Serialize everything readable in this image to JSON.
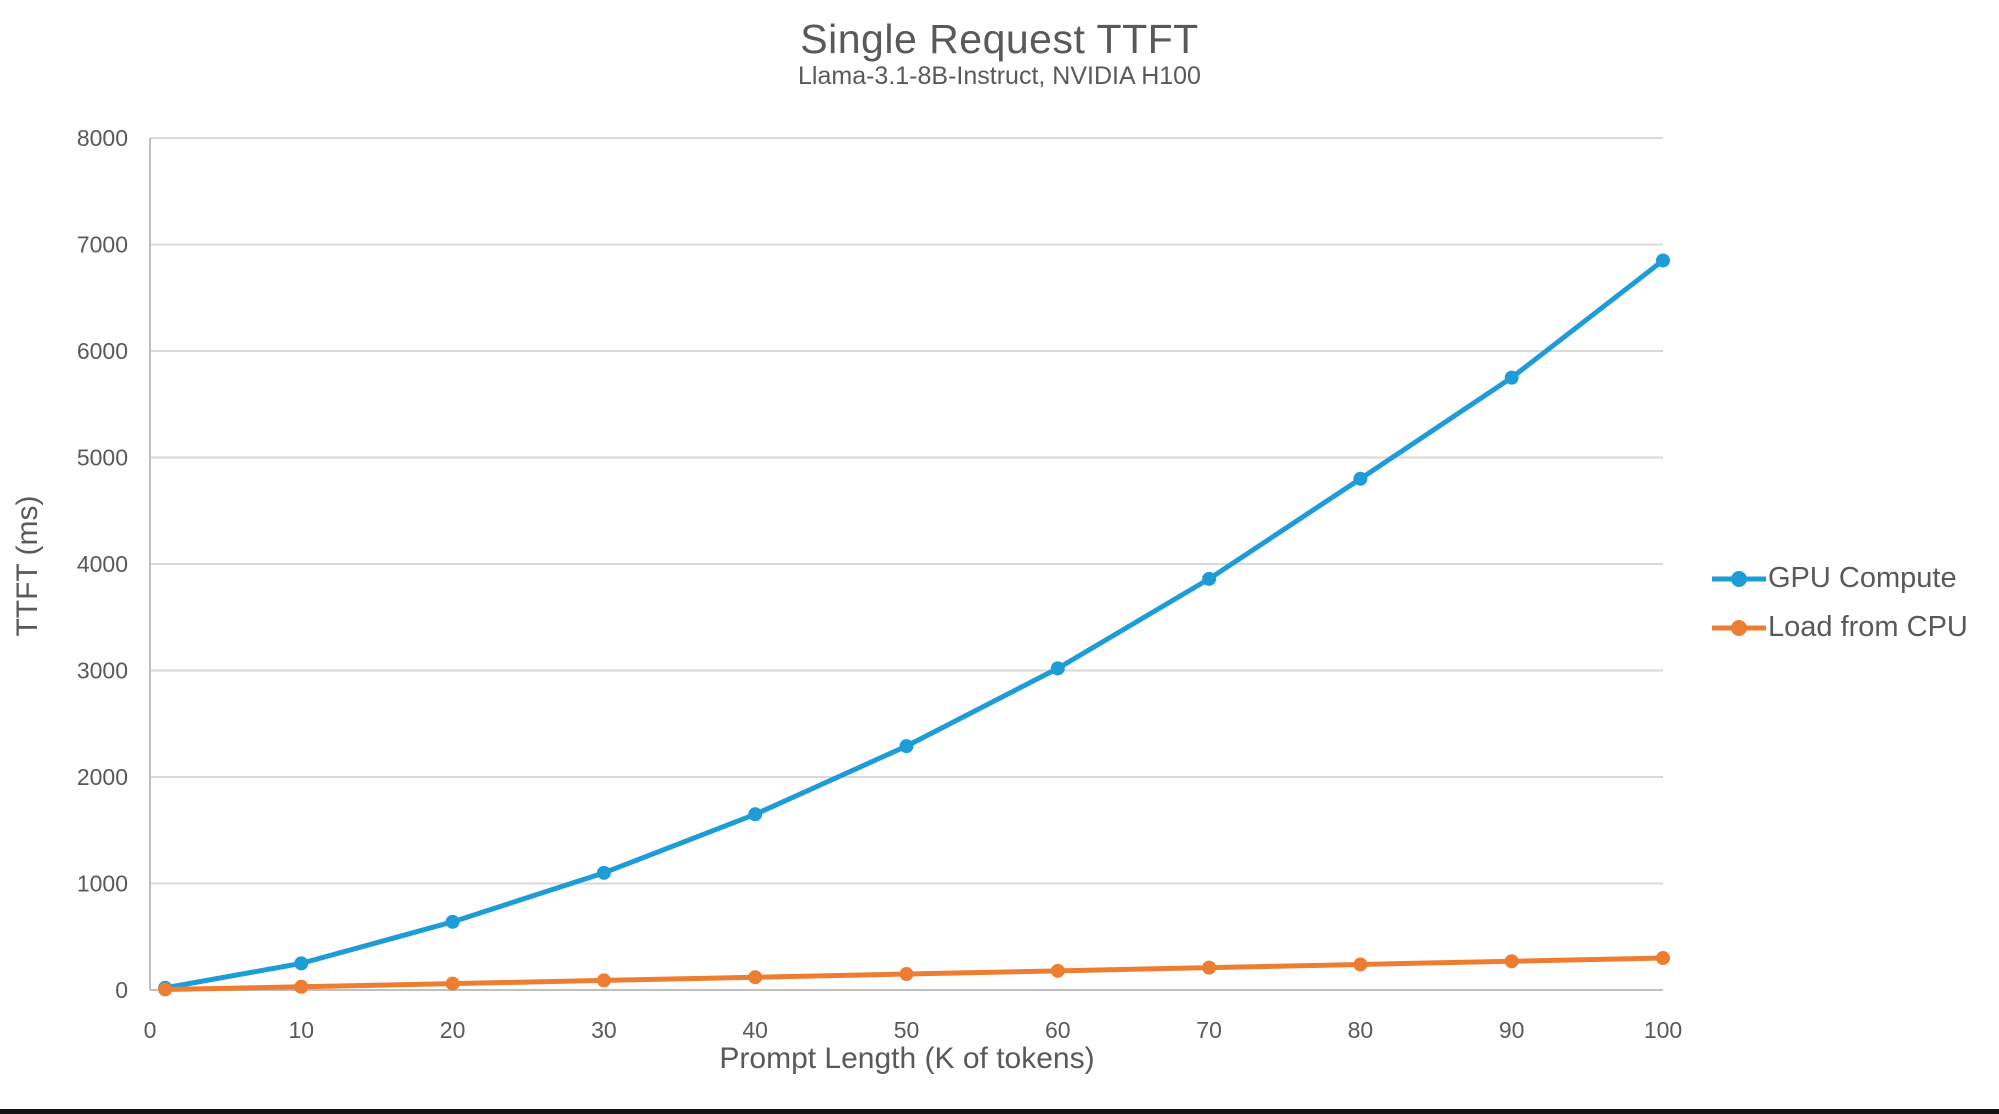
{
  "page": {
    "background": "#FFFFFF",
    "bottom_bar_color": "#141414"
  },
  "chart_data": {
    "type": "line",
    "title": "Single Request TTFT",
    "subtitle": "Llama-3.1-8B-Instruct, NVIDIA H100",
    "xlabel": "Prompt Length (K of tokens)",
    "ylabel": "TTFT (ms)",
    "x": [
      1,
      10,
      20,
      30,
      40,
      50,
      60,
      70,
      80,
      90,
      100
    ],
    "series": [
      {
        "name": "GPU Compute",
        "color": "#1E9CD8",
        "values": [
          20,
          250,
          640,
          1100,
          1650,
          2290,
          3020,
          3860,
          4800,
          5750,
          6850
        ]
      },
      {
        "name": "Load from CPU",
        "color": "#ED7D31",
        "values": [
          5,
          30,
          60,
          90,
          120,
          150,
          180,
          210,
          240,
          270,
          300
        ]
      }
    ],
    "x_ticks": [
      0,
      10,
      20,
      30,
      40,
      50,
      60,
      70,
      80,
      90,
      100
    ],
    "y_ticks": [
      0,
      1000,
      2000,
      3000,
      4000,
      5000,
      6000,
      7000,
      8000
    ],
    "xlim": [
      0,
      100
    ],
    "ylim": [
      0,
      8000
    ],
    "grid": "horizontal",
    "legend_position": "right",
    "marker": "circle",
    "axis_color": "#BFBFBF",
    "grid_color": "#D9D9D9",
    "text_color": "#595959"
  }
}
